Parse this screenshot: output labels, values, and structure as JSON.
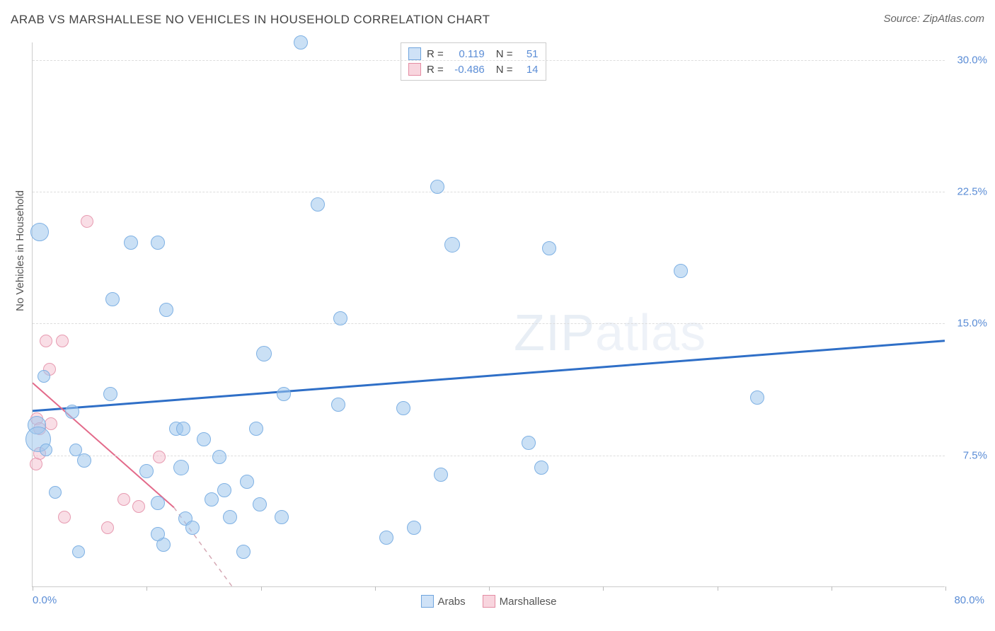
{
  "header": {
    "title": "ARAB VS MARSHALLESE NO VEHICLES IN HOUSEHOLD CORRELATION CHART",
    "source": "Source: ZipAtlas.com"
  },
  "watermark": {
    "part1": "ZIP",
    "part2": "atlas"
  },
  "axes": {
    "y_title": "No Vehicles in Household",
    "x_min": 0,
    "x_max": 80,
    "y_min": 0,
    "y_max": 31,
    "x_ticks": [
      0,
      10,
      20,
      30,
      40,
      50,
      60,
      70,
      80
    ],
    "x_tick_labels": {
      "0": "0.0%",
      "80": "80.0%"
    },
    "y_ticks": [
      7.5,
      15.0,
      22.5,
      30.0
    ],
    "y_tick_labels": [
      "7.5%",
      "15.0%",
      "22.5%",
      "30.0%"
    ],
    "grid_color": "#dddddd",
    "label_color": "#5b8dd6"
  },
  "legend_top": {
    "r_label": "R =",
    "n_label": "N =",
    "series": [
      {
        "r": "0.119",
        "n": "51",
        "fill": "#cfe2f7",
        "border": "#6fa4dd"
      },
      {
        "r": "-0.486",
        "n": "14",
        "fill": "#f8d5de",
        "border": "#e48ca3"
      }
    ]
  },
  "legend_bottom": {
    "items": [
      {
        "label": "Arabs",
        "fill": "#cfe2f7",
        "border": "#6fa4dd"
      },
      {
        "label": "Marshallese",
        "fill": "#f8d5de",
        "border": "#e48ca3"
      }
    ]
  },
  "series": {
    "arabs": {
      "fill": "rgba(159,198,236,0.55)",
      "border": "#7fb1e4",
      "trend_color": "#2f6fc7",
      "trend_width": 3,
      "trend": {
        "x1": 0,
        "y1": 10.0,
        "x2": 80,
        "y2": 14.0
      },
      "points": [
        {
          "x": 23.5,
          "y": 31.0,
          "r": 10
        },
        {
          "x": 35.5,
          "y": 22.8,
          "r": 10
        },
        {
          "x": 25.0,
          "y": 21.8,
          "r": 10
        },
        {
          "x": 0.6,
          "y": 20.2,
          "r": 13
        },
        {
          "x": 8.6,
          "y": 19.6,
          "r": 10
        },
        {
          "x": 11.0,
          "y": 19.6,
          "r": 10
        },
        {
          "x": 36.8,
          "y": 19.5,
          "r": 11
        },
        {
          "x": 45.3,
          "y": 19.3,
          "r": 10
        },
        {
          "x": 56.8,
          "y": 18.0,
          "r": 10
        },
        {
          "x": 7.0,
          "y": 16.4,
          "r": 10
        },
        {
          "x": 11.7,
          "y": 15.8,
          "r": 10
        },
        {
          "x": 27.0,
          "y": 15.3,
          "r": 10
        },
        {
          "x": 20.3,
          "y": 13.3,
          "r": 11
        },
        {
          "x": 1.0,
          "y": 12.0,
          "r": 9
        },
        {
          "x": 22.0,
          "y": 11.0,
          "r": 10
        },
        {
          "x": 6.8,
          "y": 11.0,
          "r": 10
        },
        {
          "x": 63.5,
          "y": 10.8,
          "r": 10
        },
        {
          "x": 3.5,
          "y": 10.0,
          "r": 10
        },
        {
          "x": 12.6,
          "y": 9.0,
          "r": 10
        },
        {
          "x": 13.2,
          "y": 9.0,
          "r": 10
        },
        {
          "x": 19.6,
          "y": 9.0,
          "r": 10
        },
        {
          "x": 26.8,
          "y": 10.4,
          "r": 10
        },
        {
          "x": 32.5,
          "y": 10.2,
          "r": 10
        },
        {
          "x": 0.4,
          "y": 9.2,
          "r": 13
        },
        {
          "x": 0.5,
          "y": 8.4,
          "r": 18
        },
        {
          "x": 43.5,
          "y": 8.2,
          "r": 10
        },
        {
          "x": 15.0,
          "y": 8.4,
          "r": 10
        },
        {
          "x": 16.4,
          "y": 7.4,
          "r": 10
        },
        {
          "x": 4.5,
          "y": 7.2,
          "r": 10
        },
        {
          "x": 3.8,
          "y": 7.8,
          "r": 9
        },
        {
          "x": 1.2,
          "y": 7.8,
          "r": 9
        },
        {
          "x": 10.0,
          "y": 6.6,
          "r": 10
        },
        {
          "x": 13.0,
          "y": 6.8,
          "r": 11
        },
        {
          "x": 18.8,
          "y": 6.0,
          "r": 10
        },
        {
          "x": 35.8,
          "y": 6.4,
          "r": 10
        },
        {
          "x": 44.6,
          "y": 6.8,
          "r": 10
        },
        {
          "x": 15.7,
          "y": 5.0,
          "r": 10
        },
        {
          "x": 16.8,
          "y": 5.5,
          "r": 10
        },
        {
          "x": 19.9,
          "y": 4.7,
          "r": 10
        },
        {
          "x": 13.4,
          "y": 3.9,
          "r": 10
        },
        {
          "x": 17.3,
          "y": 4.0,
          "r": 10
        },
        {
          "x": 21.8,
          "y": 4.0,
          "r": 10
        },
        {
          "x": 31.0,
          "y": 2.8,
          "r": 10
        },
        {
          "x": 33.4,
          "y": 3.4,
          "r": 10
        },
        {
          "x": 11.5,
          "y": 2.4,
          "r": 10
        },
        {
          "x": 4.0,
          "y": 2.0,
          "r": 9
        },
        {
          "x": 18.5,
          "y": 2.0,
          "r": 10
        },
        {
          "x": 11.0,
          "y": 4.8,
          "r": 10
        },
        {
          "x": 11.0,
          "y": 3.0,
          "r": 10
        },
        {
          "x": 14.0,
          "y": 3.4,
          "r": 10
        },
        {
          "x": 2.0,
          "y": 5.4,
          "r": 9
        }
      ]
    },
    "marshallese": {
      "fill": "rgba(244,190,205,0.5)",
      "border": "#e79bb1",
      "trend_color": "#e36a8a",
      "trend_width": 2,
      "trend_solid": {
        "x1": 0,
        "y1": 11.6,
        "x2": 12.4,
        "y2": 4.5
      },
      "trend_dash": {
        "x1": 12.4,
        "y1": 4.5,
        "x2": 17.5,
        "y2": 0.0
      },
      "points": [
        {
          "x": 4.8,
          "y": 20.8,
          "r": 9
        },
        {
          "x": 1.2,
          "y": 14.0,
          "r": 9
        },
        {
          "x": 2.6,
          "y": 14.0,
          "r": 9
        },
        {
          "x": 1.5,
          "y": 12.4,
          "r": 9
        },
        {
          "x": 0.4,
          "y": 9.6,
          "r": 9
        },
        {
          "x": 0.6,
          "y": 9.0,
          "r": 9
        },
        {
          "x": 1.6,
          "y": 9.3,
          "r": 9
        },
        {
          "x": 0.6,
          "y": 7.6,
          "r": 9
        },
        {
          "x": 0.3,
          "y": 7.0,
          "r": 9
        },
        {
          "x": 11.1,
          "y": 7.4,
          "r": 9
        },
        {
          "x": 8.0,
          "y": 5.0,
          "r": 9
        },
        {
          "x": 9.3,
          "y": 4.6,
          "r": 9
        },
        {
          "x": 6.6,
          "y": 3.4,
          "r": 9
        },
        {
          "x": 2.8,
          "y": 4.0,
          "r": 9
        }
      ]
    }
  }
}
